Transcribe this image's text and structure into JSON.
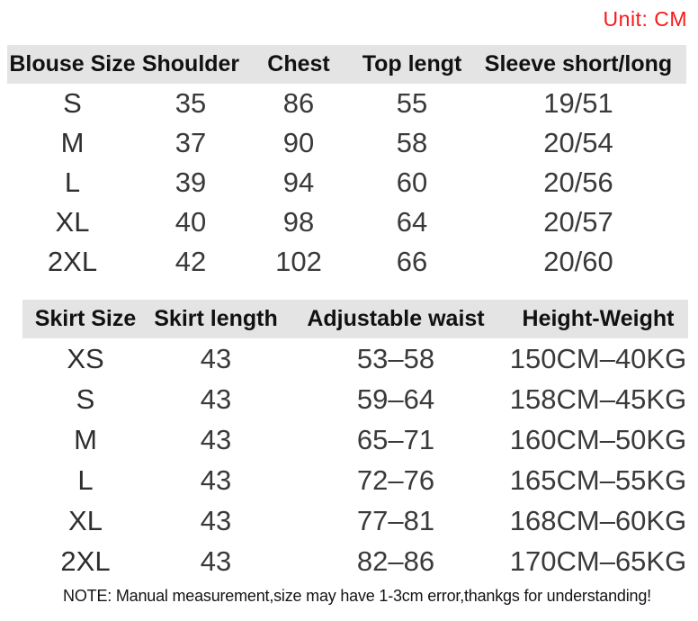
{
  "unit_label": "Unit: CM",
  "note": "NOTE: Manual measurement,size may have 1-3cm error,thankgs for understanding!",
  "colors": {
    "accent_red": "#f91818",
    "header_bg": "#e4e4e4",
    "text_dark": "#1c1c1c",
    "value_gray": "#3a3a3a"
  },
  "chart_data": [
    {
      "type": "table",
      "name": "blouse-size-chart",
      "unit": "CM",
      "columns": [
        "Blouse Size",
        "Shoulder",
        "Chest",
        "Top lengt",
        "Sleeve short/long"
      ],
      "rows": [
        [
          "S",
          "35",
          "86",
          "55",
          "19/51"
        ],
        [
          "M",
          "37",
          "90",
          "58",
          "20/54"
        ],
        [
          "L",
          "39",
          "94",
          "60",
          "20/56"
        ],
        [
          "XL",
          "40",
          "98",
          "64",
          "20/57"
        ],
        [
          "2XL",
          "42",
          "102",
          "66",
          "20/60"
        ]
      ]
    },
    {
      "type": "table",
      "name": "skirt-size-chart",
      "unit": "CM",
      "columns": [
        "Skirt Size",
        "Skirt length",
        "Adjustable waist",
        "Height-Weight"
      ],
      "rows": [
        [
          "XS",
          "43",
          "53–58",
          "150CM–40KG"
        ],
        [
          "S",
          "43",
          "59–64",
          "158CM–45KG"
        ],
        [
          "M",
          "43",
          "65–71",
          "160CM–50KG"
        ],
        [
          "L",
          "43",
          "72–76",
          "165CM–55KG"
        ],
        [
          "XL",
          "43",
          "77–81",
          "168CM–60KG"
        ],
        [
          "2XL",
          "43",
          "82–86",
          "170CM–65KG"
        ]
      ]
    }
  ]
}
